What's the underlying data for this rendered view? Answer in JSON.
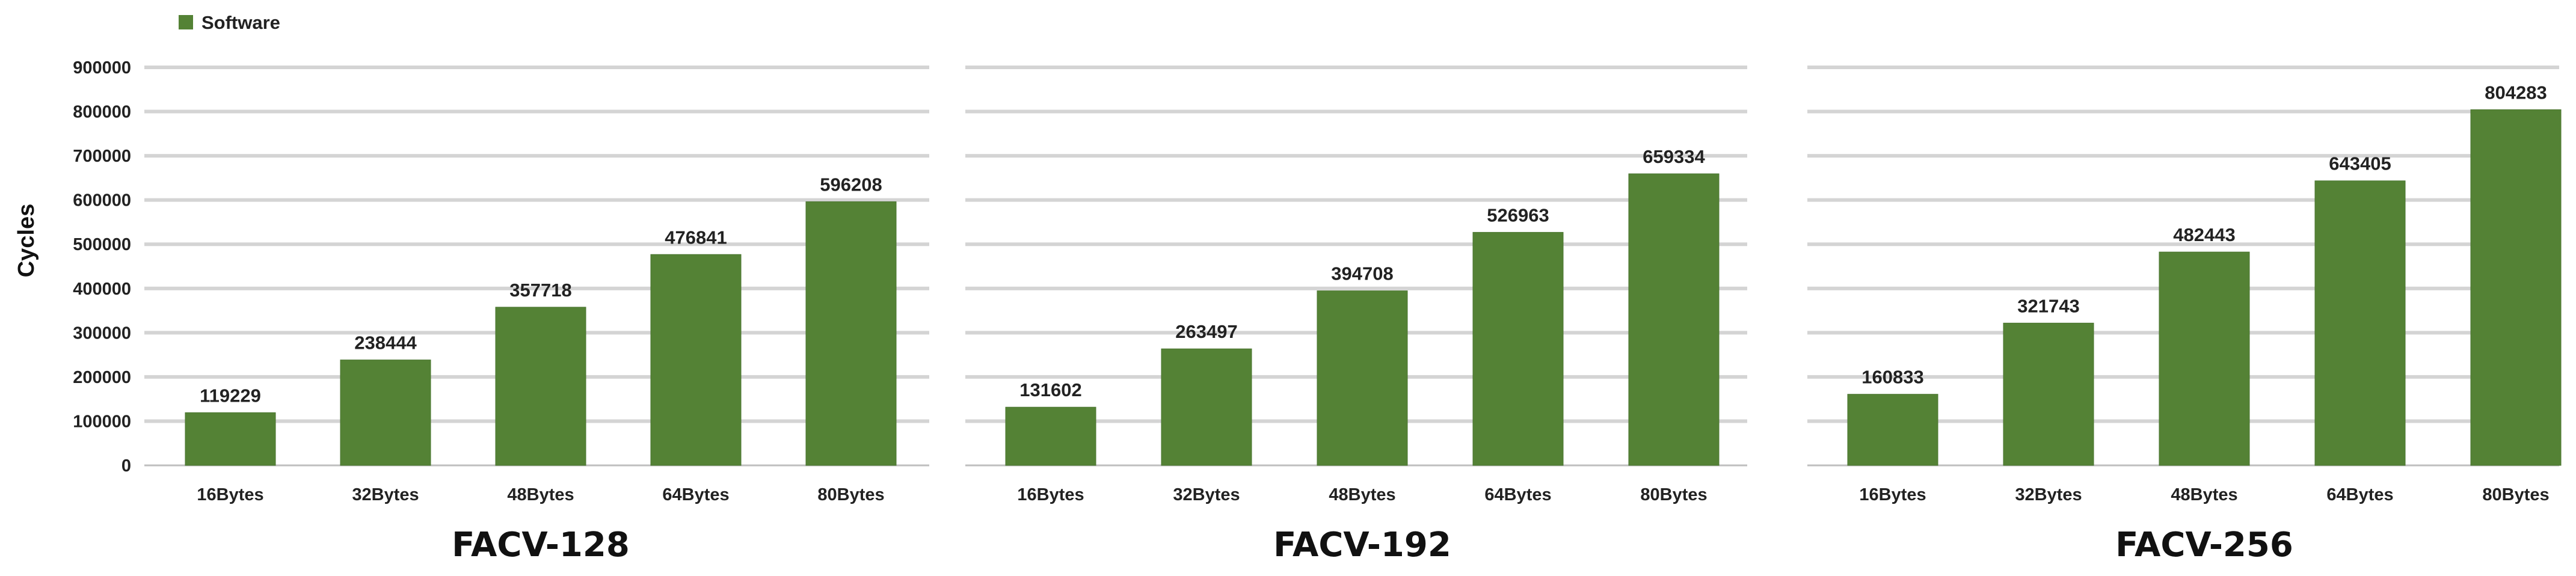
{
  "chart_data": {
    "type": "bar",
    "ylabel": "Cycles",
    "ylim": [
      0,
      900000
    ],
    "yticks": [
      0,
      100000,
      200000,
      300000,
      400000,
      500000,
      600000,
      700000,
      800000,
      900000
    ],
    "grid": true,
    "legend_position": "top-left",
    "color": "#548235",
    "series_name": "Software",
    "categories": [
      "16Bytes",
      "32Bytes",
      "48Bytes",
      "64Bytes",
      "80Bytes"
    ],
    "groups": [
      {
        "name": "FACV-128",
        "values": [
          119229,
          238444,
          357718,
          476841,
          596208
        ]
      },
      {
        "name": "FACV-192",
        "values": [
          131602,
          263497,
          394708,
          526963,
          659334
        ]
      },
      {
        "name": "FACV-256",
        "values": [
          160833,
          321743,
          482443,
          643405,
          804283
        ]
      }
    ]
  }
}
